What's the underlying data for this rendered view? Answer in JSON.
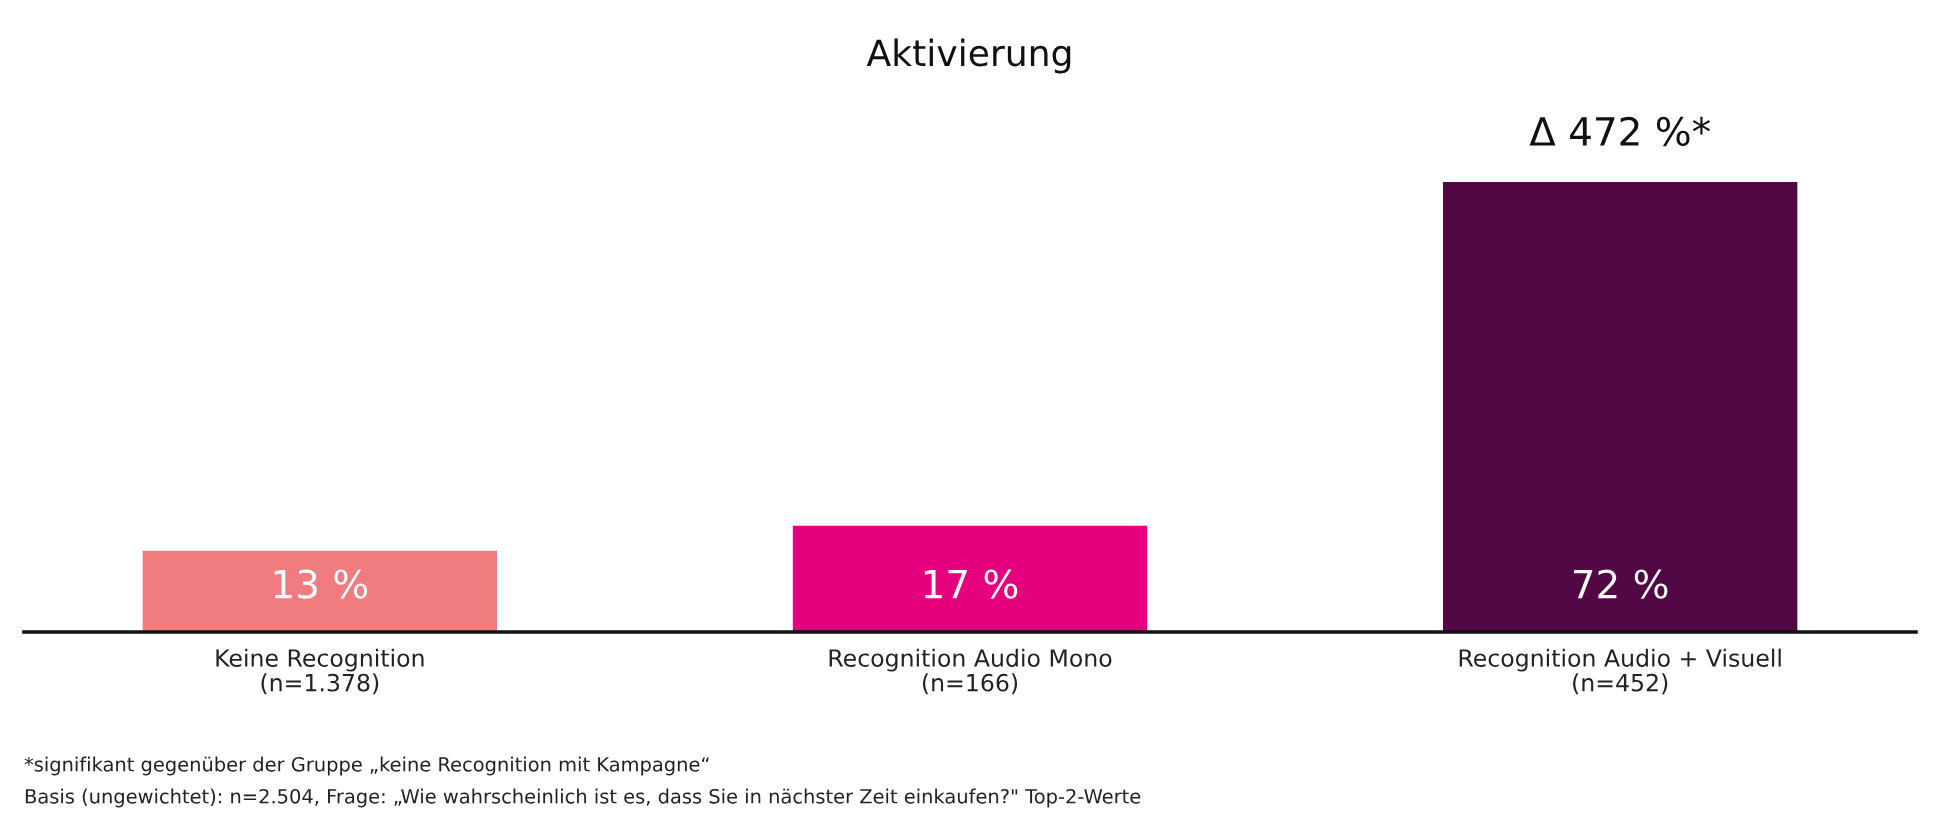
{
  "chart_data": {
    "type": "bar",
    "title": "Aktivierung",
    "categories": [
      "Keine Recognition\n(n=1.378)",
      "Recognition Audio Mono\n(n=166)",
      "Recognition Audio + Visuell\n(n=452)"
    ],
    "values": [
      13,
      17,
      72
    ],
    "colors": [
      "#f07c80",
      "#e6007e",
      "#520844"
    ],
    "value_labels": [
      "13 %",
      "17 %",
      "72 %"
    ],
    "annotations": [
      {
        "text": "Δ 472 %*",
        "x": "Recognition Audio + Visuell\n(n=452)",
        "y": 72
      },
      "*signifikant gegenüber der Gruppe „keine Recognition mit Kampagne“",
      "Basis (ungewichtet): n=2.504, Frage: „Wie wahrscheinlich ist es, dass Sie in nächster Zeit einkaufen?\" Top-2-Werte"
    ]
  }
}
